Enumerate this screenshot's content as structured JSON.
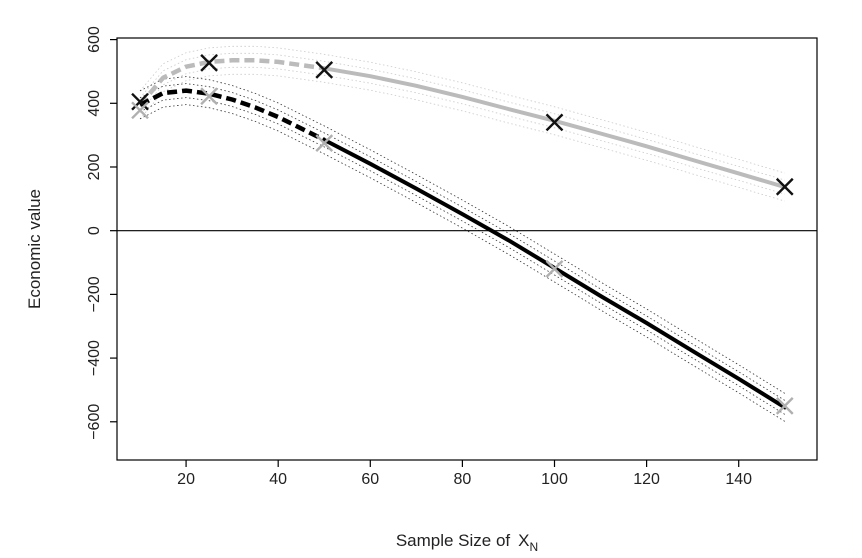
{
  "chart_data": {
    "type": "line",
    "xlabel": "Sample Size of",
    "xlabel_symbol": "X",
    "xlabel_subscript": "N",
    "ylabel": "Economic value",
    "xlim": [
      5,
      157
    ],
    "ylim": [
      -720,
      605
    ],
    "x_ticks": [
      20,
      40,
      60,
      80,
      100,
      120,
      140
    ],
    "y_ticks": [
      600,
      400,
      200,
      0,
      -200,
      -400,
      -600
    ],
    "grid": false,
    "legend": "none",
    "reference_line_y": 0,
    "series": [
      {
        "color": "#bbbbbb",
        "x": [
          10,
          15,
          20,
          25,
          30,
          35,
          40,
          50,
          60,
          70,
          80,
          90,
          100,
          110,
          120,
          130,
          140,
          150
        ],
        "y": [
          395,
          480,
          515,
          530,
          535,
          535,
          530,
          510,
          485,
          455,
          420,
          382,
          345,
          305,
          265,
          222,
          180,
          137
        ],
        "dashed_until_x": 50,
        "markers": {
          "color": "#111111",
          "points": [
            [
              10,
              405
            ],
            [
              25,
              527
            ],
            [
              50,
              505
            ],
            [
              100,
              340
            ],
            [
              150,
              138
            ]
          ]
        }
      },
      {
        "color": "#000000",
        "x": [
          10,
          15,
          20,
          25,
          30,
          35,
          40,
          50,
          60,
          70,
          80,
          90,
          100,
          110,
          120,
          130,
          140,
          150
        ],
        "y": [
          395,
          432,
          440,
          430,
          412,
          387,
          357,
          285,
          210,
          132,
          52,
          -30,
          -117,
          -205,
          -290,
          -378,
          -465,
          -555
        ],
        "dashed_until_x": 50,
        "markers": {
          "color": "#b0b0b0",
          "points": [
            [
              10,
              378
            ],
            [
              25,
              422
            ],
            [
              50,
              275
            ],
            [
              100,
              -120
            ],
            [
              150,
              -550
            ]
          ]
        }
      }
    ]
  }
}
